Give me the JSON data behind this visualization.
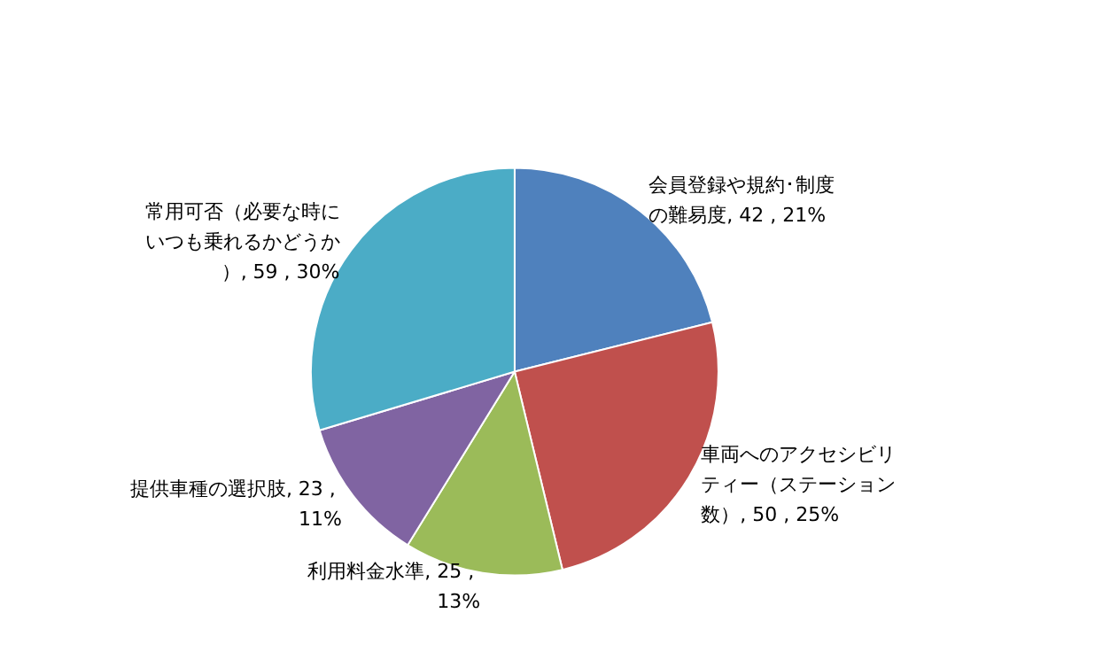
{
  "chart_data": {
    "type": "pie",
    "categories": [
      "会員登録や規約･制度の難易度",
      "車両へのアクセシビリティー（ステーション数）",
      "利用料金水準",
      "提供車種の選択肢",
      "常用可否（必要な時にいつも乗れるかどうか）"
    ],
    "values": [
      42,
      50,
      25,
      23,
      59
    ],
    "value_labels": [
      "42 , 21%",
      "50 , 25%",
      "25 , 13%",
      "23 , 11%",
      "59 , 30%"
    ],
    "colors": [
      "#4f81bd",
      "#c0504d",
      "#9bbb59",
      "#8064a2",
      "#4bacc6"
    ]
  }
}
